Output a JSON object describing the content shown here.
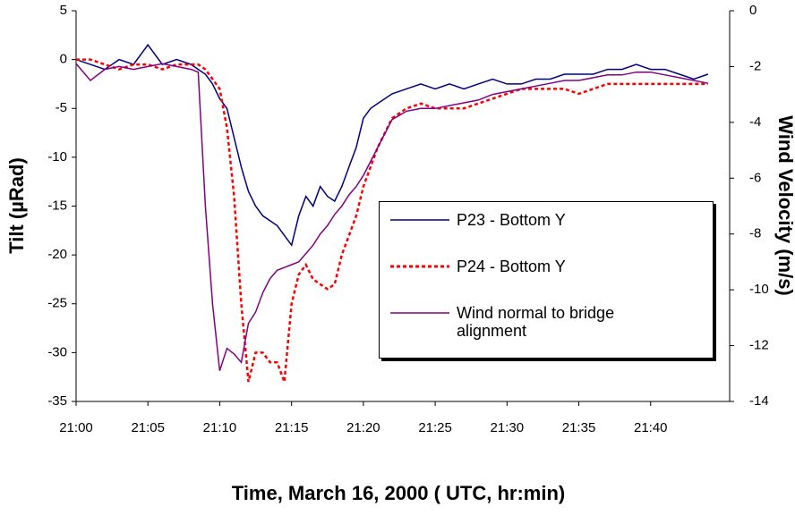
{
  "chart_data": {
    "type": "line",
    "xlabel": "Time, March 16, 2000  ( UTC, hr:min)",
    "ylabel": "Tilt (µRad)",
    "y2label": "Wind Velocity (m/s)",
    "x": [
      0,
      1,
      2,
      3,
      4,
      5,
      6,
      7,
      8,
      8.5,
      9,
      9.5,
      10,
      10.5,
      11,
      11.5,
      12,
      12.5,
      13,
      13.5,
      14,
      14.5,
      15,
      15.5,
      16,
      16.5,
      17,
      17.5,
      18,
      18.5,
      19,
      19.5,
      20,
      20.5,
      21,
      22,
      23,
      24,
      25,
      26,
      27,
      28,
      29,
      30,
      31,
      32,
      33,
      34,
      35,
      36,
      37,
      38,
      39,
      40,
      41,
      42,
      43,
      44
    ],
    "xlim": [
      0,
      45.5
    ],
    "xticks": [
      {
        "value": 0,
        "label": "21:00"
      },
      {
        "value": 5,
        "label": "21:05"
      },
      {
        "value": 10,
        "label": "21:10"
      },
      {
        "value": 15,
        "label": "21:15"
      },
      {
        "value": 20,
        "label": "21:20"
      },
      {
        "value": 25,
        "label": "21:25"
      },
      {
        "value": 30,
        "label": "21:30"
      },
      {
        "value": 35,
        "label": "21:35"
      },
      {
        "value": 40,
        "label": "21:40"
      }
    ],
    "ylim": [
      -35,
      5
    ],
    "yticks": [
      -35,
      -30,
      -25,
      -20,
      -15,
      -10,
      -5,
      0,
      5
    ],
    "y2lim": [
      -14,
      0
    ],
    "y2ticks": [
      -14,
      -12,
      -10,
      -8,
      -6,
      -4,
      -2,
      0
    ],
    "series": [
      {
        "name": "P23 - Bottom Y",
        "color": "#000080",
        "dash": "solid",
        "values": [
          0,
          -0.5,
          -1,
          0,
          -0.5,
          1.5,
          -0.5,
          0,
          -0.5,
          -1,
          -1.5,
          -2.5,
          -4,
          -5,
          -8,
          -11,
          -13.5,
          -15,
          -16,
          -16.5,
          -17,
          -18,
          -19,
          -16,
          -14,
          -15,
          -13,
          -14,
          -14.5,
          -13,
          -11,
          -9,
          -6,
          -5,
          -4.5,
          -3.5,
          -3,
          -2.5,
          -3,
          -2.5,
          -3,
          -2.5,
          -2,
          -2.5,
          -2.5,
          -2,
          -2,
          -1.5,
          -1.5,
          -1.5,
          -1,
          -1,
          -0.5,
          -1,
          -1,
          -1.5,
          -2,
          -1.5
        ]
      },
      {
        "name": "P24 - Bottom Y",
        "color": "#ff0000",
        "dash": "dotted",
        "values": [
          0,
          0,
          -0.5,
          -1,
          -0.5,
          -0.5,
          -1,
          -0.5,
          -0.5,
          -0.5,
          -1,
          -2,
          -3,
          -7,
          -14,
          -25,
          -33,
          -30,
          -30,
          -31,
          -31,
          -33,
          -25,
          -22,
          -21,
          -22.5,
          -23,
          -23.5,
          -23,
          -20,
          -18,
          -16,
          -13,
          -11,
          -9,
          -6,
          -5,
          -4.5,
          -5,
          -5,
          -5,
          -4.5,
          -4,
          -3.5,
          -3,
          -3,
          -3,
          -3,
          -3.5,
          -3,
          -2.5,
          -2.5,
          -2.5,
          -2.5,
          -2.5,
          -2.5,
          -2.5,
          -2.5
        ]
      },
      {
        "name": "Wind normal to bridge alignment",
        "color": "#800080",
        "dash": "solid",
        "axis": "y2",
        "values": [
          -1.9,
          -2.5,
          -2.1,
          -2.0,
          -2.1,
          -2.0,
          -1.9,
          -2.0,
          -2.1,
          -2.2,
          -7,
          -10.5,
          -12.9,
          -12.1,
          -12.3,
          -12.6,
          -11.2,
          -10.8,
          -10.1,
          -9.6,
          -9.3,
          -9.2,
          -9.1,
          -9.0,
          -8.7,
          -8.4,
          -8.0,
          -7.7,
          -7.3,
          -7.0,
          -6.6,
          -6.3,
          -5.9,
          -5.4,
          -4.9,
          -3.9,
          -3.6,
          -3.5,
          -3.5,
          -3.4,
          -3.3,
          -3.2,
          -3.0,
          -2.9,
          -2.8,
          -2.7,
          -2.6,
          -2.5,
          -2.5,
          -2.4,
          -2.3,
          -2.3,
          -2.2,
          -2.2,
          -2.3,
          -2.4,
          -2.5,
          -2.6
        ]
      }
    ]
  }
}
